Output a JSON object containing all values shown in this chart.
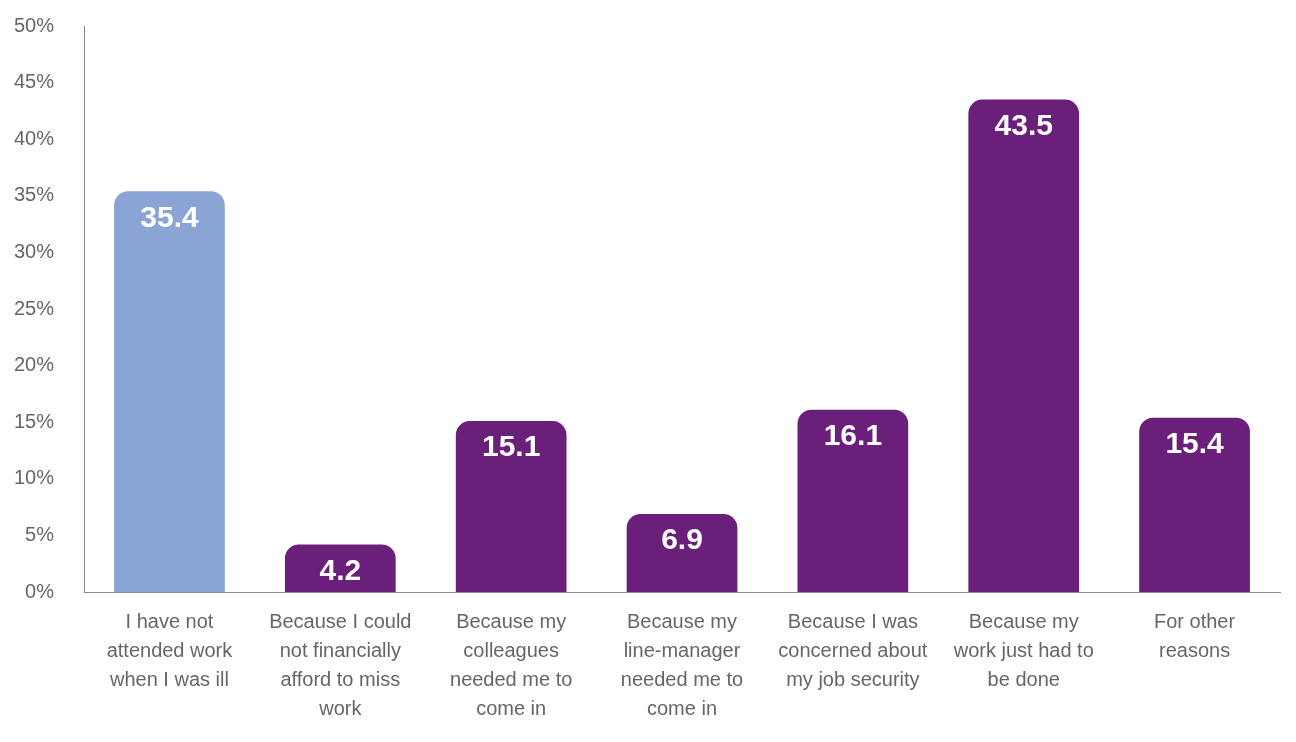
{
  "chart_data": {
    "type": "bar",
    "categories": [
      "I have not attended work when I was ill",
      "Because I could not financially afford to miss work",
      "Because my colleagues needed me to come in",
      "Because my line-manager needed me to come in",
      "Because I was concerned about my job security",
      "Because my work just had to be done",
      "For other reasons"
    ],
    "values": [
      35.4,
      4.2,
      15.1,
      6.9,
      16.1,
      43.5,
      15.4
    ],
    "colors": [
      "#8ba4d6",
      "#6a1f7a",
      "#6a1f7a",
      "#6a1f7a",
      "#6a1f7a",
      "#6a1f7a",
      "#6a1f7a"
    ],
    "ylim": [
      0,
      50
    ],
    "yticks": [
      {
        "value": 0,
        "label": "0%"
      },
      {
        "value": 5,
        "label": "5%"
      },
      {
        "value": 10,
        "label": "10%"
      },
      {
        "value": 15,
        "label": "15%"
      },
      {
        "value": 20,
        "label": "20%"
      },
      {
        "value": 25,
        "label": "25%"
      },
      {
        "value": 30,
        "label": "30%"
      },
      {
        "value": 35,
        "label": "35%"
      },
      {
        "value": 40,
        "label": "40%"
      },
      {
        "value": 45,
        "label": "45%"
      },
      {
        "value": 50,
        "label": "50%"
      }
    ],
    "data_labels": true,
    "grid": false,
    "legend": false
  }
}
